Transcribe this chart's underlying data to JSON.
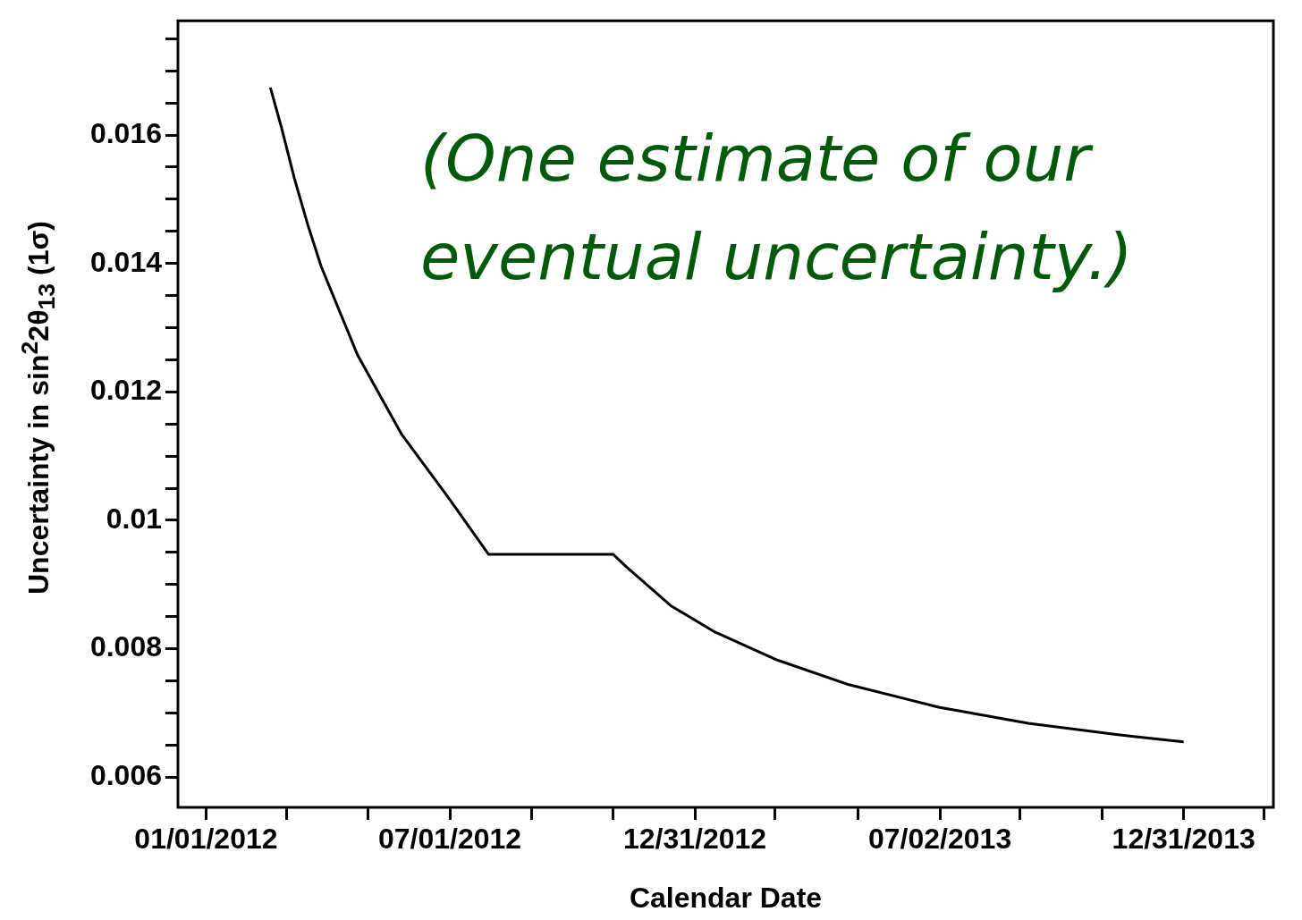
{
  "chart_data": {
    "type": "line",
    "xlabel": "Calendar Date",
    "ylabel": "Uncertainty in sin$^{2}$2θ$_{13}$ (1σ)",
    "annotations": [
      "(One estimate of our eventual uncertainty.)"
    ],
    "x": [
      "2012-02-18",
      "2012-02-26",
      "2012-03-07",
      "2012-03-17",
      "2012-03-27",
      "2012-04-23",
      "2012-05-26",
      "2012-06-29",
      "2012-07-30",
      "2012-10-31",
      "2012-11-09",
      "2012-12-13",
      "2013-01-15",
      "2013-03-03",
      "2013-04-25",
      "2013-07-01",
      "2013-09-06",
      "2013-11-12",
      "2013-12-31"
    ],
    "series": [
      {
        "color": "#000000",
        "values": [
          0.01674,
          0.01614,
          0.01532,
          0.0146,
          0.01395,
          0.01258,
          0.01134,
          0.01038,
          0.00947,
          0.00947,
          0.00929,
          0.00867,
          0.00826,
          0.00782,
          0.00744,
          0.00709,
          0.00684,
          0.00666,
          0.00655
        ]
      }
    ],
    "xlim": [
      "2011-12-11",
      "2014-03-08"
    ],
    "xticks": [
      {
        "value": "2012-01-01",
        "label": "01/01/2012"
      },
      {
        "value": "2012-03-01",
        "label": null
      },
      {
        "value": "2012-05-01",
        "label": null
      },
      {
        "value": "2012-07-01",
        "label": "07/01/2012"
      },
      {
        "value": "2012-08-31",
        "label": null
      },
      {
        "value": "2012-10-31",
        "label": null
      },
      {
        "value": "2012-12-31",
        "label": "12/31/2012"
      },
      {
        "value": "2013-03-01",
        "label": null
      },
      {
        "value": "2013-05-02",
        "label": null
      },
      {
        "value": "2013-07-02",
        "label": "07/02/2013"
      },
      {
        "value": "2013-08-31",
        "label": null
      },
      {
        "value": "2013-10-31",
        "label": null
      },
      {
        "value": "2013-12-31",
        "label": "12/31/2013"
      },
      {
        "value": "2014-03-01",
        "label": null
      }
    ],
    "ylim": [
      0.00553,
      0.01778
    ],
    "yticks": [
      0.006,
      {
        "value": 0.0065,
        "label": null
      },
      {
        "value": 0.007,
        "label": null
      },
      {
        "value": 0.0075,
        "label": null
      },
      0.008,
      {
        "value": 0.0085,
        "label": null
      },
      {
        "value": 0.009,
        "label": null
      },
      {
        "value": 0.0095,
        "label": null
      },
      0.01,
      {
        "value": 0.0105,
        "label": null
      },
      {
        "value": 0.011,
        "label": null
      },
      {
        "value": 0.0115,
        "label": null
      },
      0.012,
      {
        "value": 0.0125,
        "label": null
      },
      {
        "value": 0.013,
        "label": null
      },
      {
        "value": 0.0135,
        "label": null
      },
      0.014,
      {
        "value": 0.0145,
        "label": null
      },
      {
        "value": 0.015,
        "label": null
      },
      {
        "value": 0.0155,
        "label": null
      },
      0.016,
      {
        "value": 0.0165,
        "label": null
      },
      {
        "value": 0.017,
        "label": null
      },
      {
        "value": 0.0175,
        "label": null
      }
    ],
    "marker": "none",
    "line_style": "solid",
    "legend": false,
    "grid": false
  }
}
